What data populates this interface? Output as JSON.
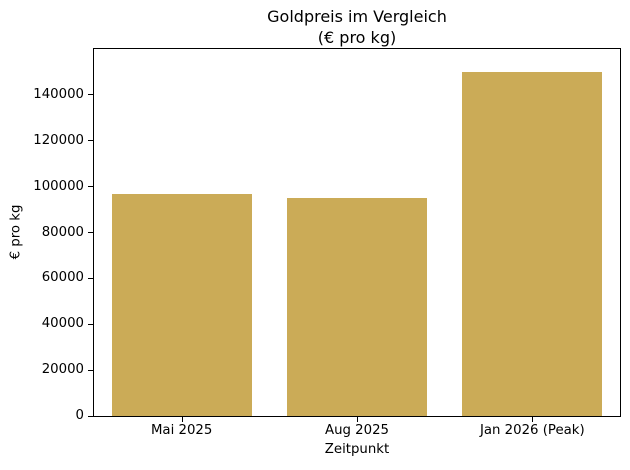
{
  "chart_data": {
    "type": "bar",
    "title": "Goldpreis im Vergleich",
    "subtitle": "(€ pro kg)",
    "categories": [
      "Mai 2025",
      "Aug 2025",
      "Jan 2026 (Peak)"
    ],
    "values": [
      97000,
      95000,
      150000
    ],
    "xlabel": "Zeitpunkt",
    "ylabel": "€ pro kg",
    "ylim": [
      0,
      160000
    ],
    "yticks": [
      0,
      20000,
      40000,
      60000,
      80000,
      100000,
      120000,
      140000
    ],
    "bar_color": "#CBAB57",
    "bar_width_fraction": 0.8,
    "axis_color": "#000000",
    "background": "#ffffff",
    "grid": false,
    "legend_position": "none"
  }
}
